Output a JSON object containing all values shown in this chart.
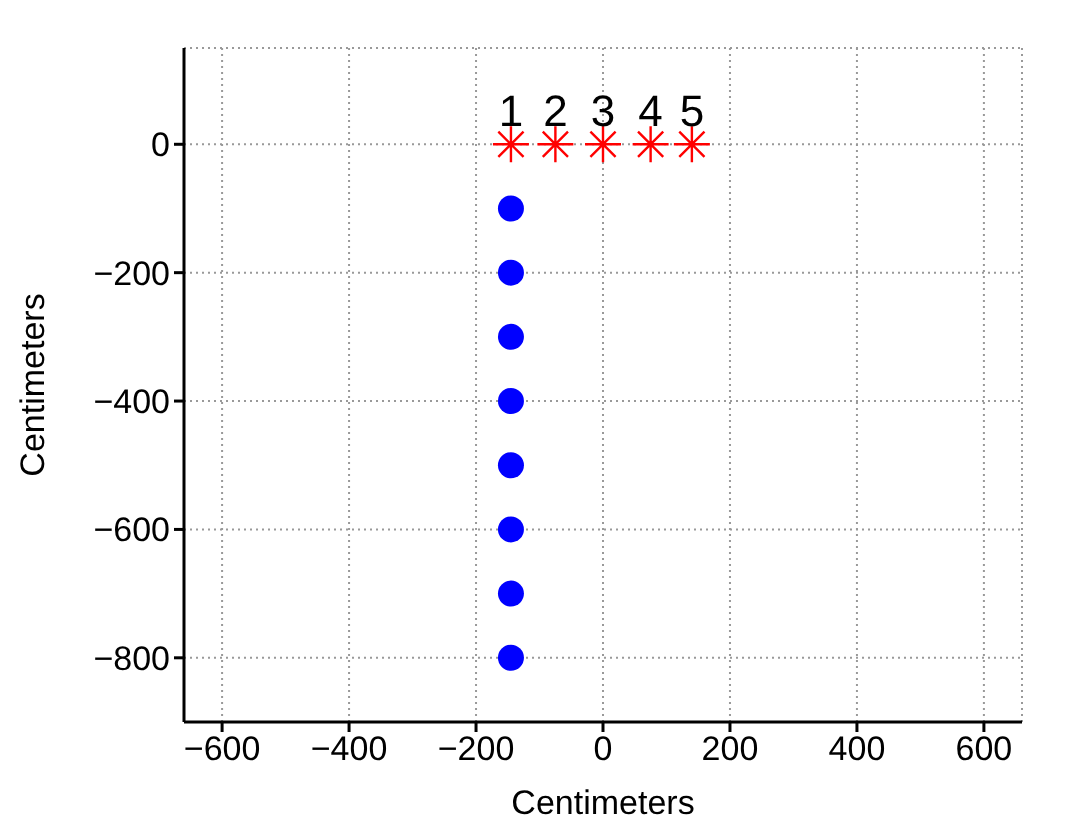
{
  "chart_data": {
    "type": "scatter",
    "xlabel": "Centimeters",
    "ylabel": "Centimeters",
    "xlim": [
      -660,
      660
    ],
    "xticks": [
      -600,
      -400,
      -200,
      0,
      200,
      400,
      600
    ],
    "ylim": [
      -900,
      150
    ],
    "yticks": [
      -800,
      -600,
      -400,
      -200,
      0
    ],
    "grid": true,
    "legend": false,
    "series": [
      {
        "x": [
          -145,
          -75,
          0,
          75,
          140
        ],
        "values": [
          0,
          0,
          0,
          0,
          0
        ],
        "color": "#ff0000",
        "marker": "cross"
      },
      {
        "x": [
          -145,
          -145,
          -145,
          -145,
          -145,
          -145,
          -145,
          -145
        ],
        "values": [
          -100,
          -200,
          -300,
          -400,
          -500,
          -600,
          -700,
          -800
        ],
        "color": "#0000ff",
        "marker": "circle"
      }
    ],
    "annotations": [
      {
        "text": "1",
        "x": -145,
        "y": 0
      },
      {
        "text": "2",
        "x": -75,
        "y": 0
      },
      {
        "text": "3",
        "x": 0,
        "y": 0
      },
      {
        "text": "4",
        "x": 75,
        "y": 0
      },
      {
        "text": "5",
        "x": 140,
        "y": 0
      }
    ]
  }
}
